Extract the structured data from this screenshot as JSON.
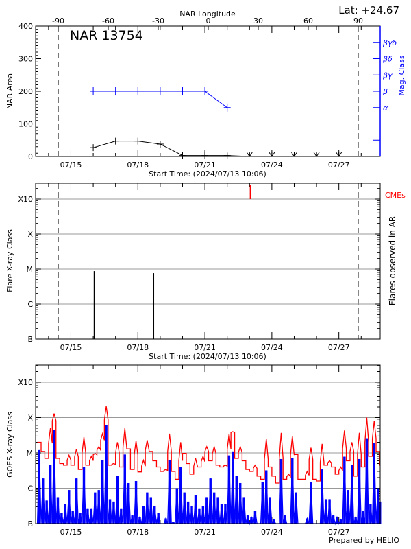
{
  "chart_data": [
    {
      "type": "line",
      "panel": "top",
      "title": "NAR 13754",
      "latitude_label": "Lat: +24.67",
      "top_axis_label": "NAR Longitude",
      "longitude_ticks": [
        -90,
        -60,
        -30,
        0,
        30,
        60,
        90
      ],
      "limb_longitudes": [
        -90,
        90
      ],
      "ylabel": "NAR Area",
      "ylim": [
        0,
        400
      ],
      "yticks": [
        0,
        100,
        200,
        300,
        400
      ],
      "right_ylabel": "Mag. Class",
      "mag_classes": [
        {
          "label": "α",
          "level": 150
        },
        {
          "label": "β",
          "level": 200
        },
        {
          "label": "βγ",
          "level": 250
        },
        {
          "label": "βδ",
          "level": 300
        },
        {
          "label": "βγδ",
          "level": 350
        }
      ],
      "xlabel": "Start Time: (2024/07/13 10:06)",
      "xticks": [
        "07/15",
        "07/18",
        "07/21",
        "07/24",
        "07/27"
      ],
      "series": [
        {
          "name": "NAR Area",
          "color": "#000000",
          "points": [
            {
              "date": "07/16",
              "value": 27,
              "marker": "+"
            },
            {
              "date": "07/17",
              "value": 47,
              "marker": "+"
            },
            {
              "date": "07/18",
              "value": 47,
              "marker": "+"
            },
            {
              "date": "07/19",
              "value": 38,
              "marker": "+"
            },
            {
              "date": "07/20",
              "value": 3,
              "marker": "+"
            },
            {
              "date": "07/21",
              "value": 3,
              "marker": "+"
            },
            {
              "date": "07/22",
              "value": 3,
              "marker": "+"
            },
            {
              "date": "07/23",
              "value": 0,
              "marker": "v"
            },
            {
              "date": "07/24",
              "value": 0,
              "marker": "v"
            },
            {
              "date": "07/25",
              "value": 0,
              "marker": "v"
            },
            {
              "date": "07/26",
              "value": 0,
              "marker": "v"
            },
            {
              "date": "07/27",
              "value": 0,
              "marker": "v"
            }
          ]
        },
        {
          "name": "Mag. Class",
          "color": "#0000ff",
          "points": [
            {
              "date": "07/16",
              "class": "β"
            },
            {
              "date": "07/17",
              "class": "β"
            },
            {
              "date": "07/18",
              "class": "β"
            },
            {
              "date": "07/19",
              "class": "β"
            },
            {
              "date": "07/20",
              "class": "β"
            },
            {
              "date": "07/21",
              "class": "β"
            },
            {
              "date": "07/22",
              "class": "α"
            }
          ]
        }
      ]
    },
    {
      "type": "bar",
      "panel": "middle",
      "ylabel": "Flare X-ray Class",
      "right_ylabel": "Flares observed in AR",
      "yticks": [
        "B",
        "C",
        "M",
        "X",
        "X10"
      ],
      "grid": true,
      "xlabel": "Start Time: (2024/07/13 10:06)",
      "xticks": [
        "07/15",
        "07/18",
        "07/21",
        "07/24",
        "07/27"
      ],
      "flares": [
        {
          "time": "07/16 01:00",
          "class": "C8.7"
        },
        {
          "time": "07/18 17:00",
          "class": "C7.6"
        }
      ],
      "cme_label": "CMEs",
      "cme_color": "#ff0000",
      "cmes": [
        {
          "time": "07/23 01:00"
        }
      ]
    },
    {
      "type": "line",
      "panel": "bottom",
      "ylabel": "GOES X-ray Class",
      "yticks": [
        "B",
        "C",
        "M",
        "X",
        "X10"
      ],
      "grid": true,
      "xticks": [
        "07/15",
        "07/18",
        "07/21",
        "07/24",
        "07/27"
      ],
      "t_start": "07/13 12:00",
      "interval_hours": 4,
      "series": [
        {
          "color": "#ff0000",
          "values": [
            "M2",
            "M1.1",
            "C7",
            "M5",
            "X1.3",
            "C7",
            "C5",
            "C4.5",
            "C8.6",
            "C4.5",
            "M1.3",
            "C3.4",
            "M2.8",
            "C4.5",
            "C8",
            "C9.7",
            "M1.5",
            "M3.5",
            "X2.1",
            "C4.5",
            "C5",
            "M2",
            "C4",
            "M5",
            "M1.3",
            "C3.4",
            "M2.2",
            "C2.9",
            "C6.2",
            "M2.3",
            "M1.1",
            "C6",
            "C4",
            "C3",
            "C3.4",
            "M3.5",
            "C3",
            "C1.8",
            "M2",
            "C9.7",
            "C5",
            "C2.5",
            "C7",
            "C4",
            "C8",
            "M1.5",
            "C6",
            "M1.5",
            "C4.5",
            "C4",
            "C4.5",
            "M3.5",
            "M4",
            "C7",
            "M1.5",
            "C6",
            "C3.4",
            "C3",
            "C4.5",
            "C2.2",
            "C1.8",
            "M2.5",
            "C4",
            "C2.2",
            "C1.4",
            "M3.7",
            "C1.8",
            "C2.5",
            "M3",
            "C9",
            "C1.8",
            "C1.8",
            "C3",
            "M1.4",
            "C1.8",
            "C1.6",
            "M1.8",
            "C4.5",
            "C6",
            "C4",
            "C2.5",
            "C4",
            "M4.3",
            "C6",
            "M2",
            "C2.2",
            "M3.7",
            "C4",
            "X1.0",
            "C8",
            "M8",
            "M1.1",
            "C4.5"
          ]
        },
        {
          "color": "#0000ff",
          "values": [
            "M1.2",
            "C1.9",
            "B4.5",
            "C4.6",
            "M4.4",
            "B5.6",
            "B2",
            "B3.6",
            "B8.9",
            "B2.3",
            "C1.9",
            "B2",
            "C4",
            "B2.7",
            "B2.7",
            "B7.6",
            "B8.9",
            "C6.3",
            "M6",
            "B4.9",
            "B4.2",
            "C2.2",
            "B2.7",
            "C9",
            "C1.4",
            "B1.7",
            "C1.6",
            "B1.5",
            "B3.1",
            "B7.6",
            "B5.6",
            "B3.1",
            "B2",
            "B1.0",
            "B1.4",
            "C6.3",
            "B1.1",
            "C1.0",
            "C4",
            "B7.6",
            "B4.2",
            "B3.1",
            "B6.5",
            "B2.7",
            "B3.1",
            "B5.6",
            "C1.9",
            "B7.6",
            "B5.6",
            "B3.6",
            "B3.6",
            "C8.5",
            "M1.1",
            "C2.2",
            "C1.4",
            "B5.6",
            "B1.7",
            "B1.5",
            "B2.3",
            "B1.0",
            "C1.5",
            "C3.2",
            "B5.6",
            "B1.3",
            "B1.0",
            "C6.7",
            "B1.7",
            "B1.0",
            "C7",
            "B7.6",
            "B1.0",
            "B1.0",
            "B1.4",
            "C1.5",
            "B1.0",
            "B1.0",
            "C3.4",
            "B4.9",
            "B4.9",
            "B1.7",
            "B1.5",
            "B1.3",
            "C7.8",
            "B8.9",
            "C4.6",
            "B1.5",
            "C6.7",
            "B2.3",
            "M2.6",
            "B3.6",
            "M1.9",
            "C1.0",
            "B4.2"
          ]
        }
      ],
      "footer": "Prepared by HELIO"
    }
  ]
}
